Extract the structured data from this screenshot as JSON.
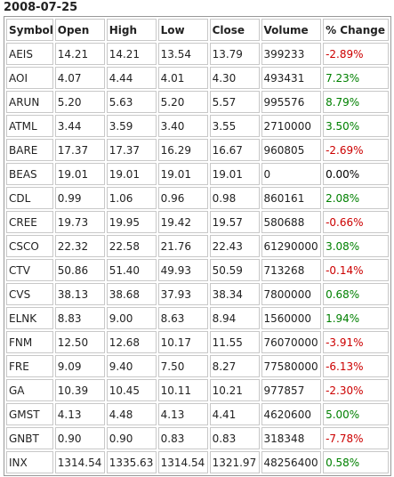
{
  "header": {
    "title": "2008-07-25"
  },
  "table": {
    "columns": [
      "Symbol",
      "Open",
      "High",
      "Low",
      "Close",
      "Volume",
      "% Change"
    ],
    "rows": [
      [
        "AEIS",
        "14.21",
        "14.21",
        "13.54",
        "13.79",
        "399233",
        "-2.89%"
      ],
      [
        "AOI",
        "4.07",
        "4.44",
        "4.01",
        "4.30",
        "493431",
        "7.23%"
      ],
      [
        "ARUN",
        "5.20",
        "5.63",
        "5.20",
        "5.57",
        "995576",
        "8.79%"
      ],
      [
        "ATML",
        "3.44",
        "3.59",
        "3.40",
        "3.55",
        "2710000",
        "3.50%"
      ],
      [
        "BARE",
        "17.37",
        "17.37",
        "16.29",
        "16.67",
        "960805",
        "-2.69%"
      ],
      [
        "BEAS",
        "19.01",
        "19.01",
        "19.01",
        "19.01",
        "0",
        "0.00%"
      ],
      [
        "CDL",
        "0.99",
        "1.06",
        "0.96",
        "0.98",
        "860161",
        "2.08%"
      ],
      [
        "CREE",
        "19.73",
        "19.95",
        "19.42",
        "19.57",
        "580688",
        "-0.66%"
      ],
      [
        "CSCO",
        "22.32",
        "22.58",
        "21.76",
        "22.43",
        "61290000",
        "3.08%"
      ],
      [
        "CTV",
        "50.86",
        "51.40",
        "49.93",
        "50.59",
        "713268",
        "-0.14%"
      ],
      [
        "CVS",
        "38.13",
        "38.68",
        "37.93",
        "38.34",
        "7800000",
        "0.68%"
      ],
      [
        "ELNK",
        "8.83",
        "9.00",
        "8.63",
        "8.94",
        "1560000",
        "1.94%"
      ],
      [
        "FNM",
        "12.50",
        "12.68",
        "10.17",
        "11.55",
        "76070000",
        "-3.91%"
      ],
      [
        "FRE",
        "9.09",
        "9.40",
        "7.50",
        "8.27",
        "77580000",
        "-6.13%"
      ],
      [
        "GA",
        "10.39",
        "10.45",
        "10.11",
        "10.21",
        "977857",
        "-2.30%"
      ],
      [
        "GMST",
        "4.13",
        "4.48",
        "4.13",
        "4.41",
        "4620600",
        "5.00%"
      ],
      [
        "GNBT",
        "0.90",
        "0.90",
        "0.83",
        "0.83",
        "318348",
        "-7.78%"
      ],
      [
        "INX",
        "1314.54",
        "1335.63",
        "1314.54",
        "1321.97",
        "48256400",
        "0.58%"
      ]
    ],
    "up_color": "#008000",
    "down_color": "#cc0000",
    "flat_color": "#000000"
  }
}
